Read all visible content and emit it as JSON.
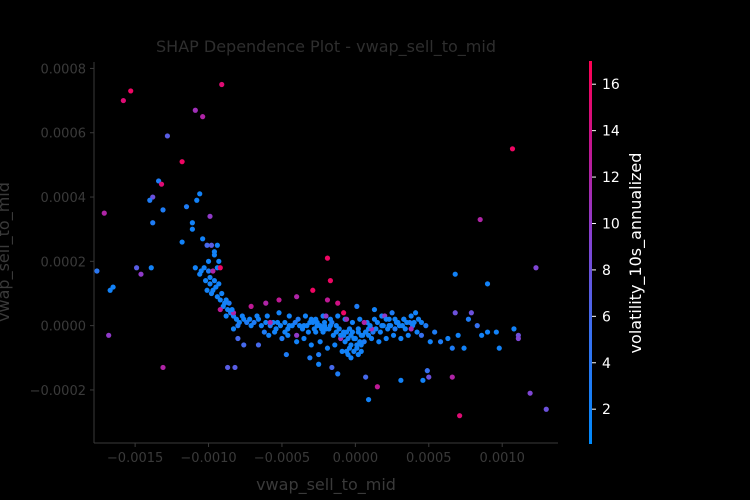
{
  "chart_data": {
    "type": "scatter",
    "title": "SHAP Dependence Plot - vwap_sell_to_mid",
    "xlabel": "vwap_sell_to_mid",
    "ylabel": "vwap_sell_to_mid",
    "xlim": [
      -0.00178,
      0.00138
    ],
    "ylim": [
      -0.000365,
      0.00082
    ],
    "x_ticks": [
      -0.0015,
      -0.001,
      -0.0005,
      0.0,
      0.0005,
      0.001
    ],
    "x_tick_labels": [
      "−0.0015",
      "−0.0010",
      "−0.0005",
      "0.0000",
      "0.0005",
      "0.0010"
    ],
    "y_ticks": [
      -0.0002,
      0.0,
      0.0002,
      0.0004,
      0.0006,
      0.0008
    ],
    "y_tick_labels": [
      "−0.0002",
      "0.0000",
      "0.0002",
      "0.0004",
      "0.0006",
      "0.0008"
    ],
    "colorbar": {
      "label": "volatility_10s_annualized",
      "range": [
        0.5,
        17
      ],
      "ticks": [
        2,
        4,
        6,
        8,
        10,
        12,
        14,
        16
      ],
      "tick_labels": [
        "2",
        "4",
        "6",
        "8",
        "10",
        "12",
        "14",
        "16"
      ],
      "low_color": "#008afb",
      "high_color": "#ff0052"
    },
    "points": [
      [
        -0.00158,
        0.0007,
        15
      ],
      [
        -0.00153,
        0.00073,
        16
      ],
      [
        -0.00091,
        0.00075,
        15
      ],
      [
        -0.00128,
        0.00059,
        7
      ],
      [
        -0.00109,
        0.00067,
        11
      ],
      [
        -0.00104,
        0.00065,
        12
      ],
      [
        -0.00118,
        0.00051,
        16
      ],
      [
        -0.00134,
        0.00045,
        3
      ],
      [
        -0.00132,
        0.00044,
        15
      ],
      [
        -0.00138,
        0.0004,
        8
      ],
      [
        -0.0014,
        0.00039,
        3
      ],
      [
        -0.00115,
        0.00037,
        3
      ],
      [
        -0.00106,
        0.00041,
        2
      ],
      [
        -0.00108,
        0.00039,
        2
      ],
      [
        -0.00131,
        0.00036,
        3
      ],
      [
        -0.00099,
        0.00034,
        10
      ],
      [
        -0.00138,
        0.00032,
        3
      ],
      [
        -0.00111,
        0.00032,
        2
      ],
      [
        -0.00111,
        0.0003,
        2
      ],
      [
        -0.00104,
        0.00027,
        2
      ],
      [
        -0.00118,
        0.00026,
        2
      ],
      [
        -0.00101,
        0.00025,
        6
      ],
      [
        -0.00098,
        0.00025,
        7
      ],
      [
        -0.00094,
        0.00025,
        2
      ],
      [
        -0.00096,
        0.00023,
        2
      ],
      [
        -0.00171,
        0.00035,
        12
      ],
      [
        -0.00176,
        0.00017,
        4
      ],
      [
        -0.00149,
        0.00018,
        7
      ],
      [
        -0.00146,
        0.00016,
        10
      ],
      [
        -0.00139,
        0.00018,
        2
      ],
      [
        -0.00109,
        0.00018,
        2
      ],
      [
        -0.00105,
        0.00017,
        2
      ],
      [
        -0.00103,
        0.00018,
        2
      ],
      [
        -0.001,
        0.00017,
        3
      ],
      [
        -0.00097,
        0.00017,
        12
      ],
      [
        -0.00094,
        0.00018,
        2
      ],
      [
        -0.00092,
        0.00018,
        16
      ],
      [
        -0.00106,
        0.00016,
        2
      ],
      [
        -0.00099,
        0.00015,
        2
      ],
      [
        -0.00096,
        0.00014,
        2
      ],
      [
        -0.00093,
        0.00013,
        2
      ],
      [
        -0.00095,
        0.00012,
        2
      ],
      [
        -0.00101,
        0.00011,
        2
      ],
      [
        -0.00098,
        0.0001,
        2
      ],
      [
        -0.00094,
        9e-05,
        2
      ],
      [
        -0.00091,
        0.0001,
        2
      ],
      [
        -0.00088,
        8e-05,
        2
      ],
      [
        -0.00086,
        7e-05,
        3
      ],
      [
        -0.00165,
        0.00012,
        2
      ],
      [
        -0.00167,
        0.00011,
        2
      ],
      [
        -0.00168,
        -3e-05,
        10
      ],
      [
        -0.00131,
        -0.00013,
        12
      ],
      [
        -0.0009,
        6e-05,
        2
      ],
      [
        -0.00087,
        5e-05,
        2
      ],
      [
        -0.00092,
        5e-05,
        13
      ],
      [
        -0.00085,
        4e-05,
        3
      ],
      [
        -0.00083,
        3e-05,
        2
      ],
      [
        -0.00088,
        3e-05,
        2
      ],
      [
        -0.00081,
        2e-05,
        2
      ],
      [
        -0.00079,
        1e-05,
        2
      ],
      [
        -0.00083,
        -1e-05,
        2
      ],
      [
        -0.0008,
        0.0,
        3
      ],
      [
        -0.00076,
        2e-05,
        2
      ],
      [
        -0.00074,
        1e-05,
        3
      ],
      [
        -0.00071,
        0.0,
        2
      ],
      [
        -0.00069,
        1e-05,
        3
      ],
      [
        -0.00066,
        2e-05,
        2
      ],
      [
        -0.00064,
        0.0,
        2
      ],
      [
        -0.00061,
        1e-05,
        2
      ],
      [
        -0.00058,
        0.0,
        3
      ],
      [
        -0.00056,
        1e-05,
        2
      ],
      [
        -0.00053,
        1e-05,
        2
      ],
      [
        -0.00051,
        0.0,
        2
      ],
      [
        -0.00048,
        1e-05,
        2
      ],
      [
        -0.00046,
        -1e-05,
        2
      ],
      [
        -0.00043,
        0.0,
        2
      ],
      [
        -0.00041,
        1e-05,
        3
      ],
      [
        -0.00038,
        0.0,
        2
      ],
      [
        -0.00036,
        -1e-05,
        2
      ],
      [
        -0.00033,
        0.0,
        2
      ],
      [
        -0.00031,
        1e-05,
        2
      ],
      [
        -0.00028,
        -1e-05,
        2
      ],
      [
        -0.00026,
        0.0,
        2
      ],
      [
        -0.00023,
        -1e-05,
        2
      ],
      [
        -0.00021,
        0.0,
        2
      ],
      [
        -0.00018,
        -1e-05,
        2
      ],
      [
        -0.00016,
        1e-05,
        3
      ],
      [
        -0.00013,
        -2e-05,
        2
      ],
      [
        -0.00011,
        -1e-05,
        2
      ],
      [
        -8e-05,
        -3e-05,
        2
      ],
      [
        -6e-05,
        -2e-05,
        2
      ],
      [
        -3e-05,
        -3e-05,
        2
      ],
      [
        -1e-05,
        -4e-05,
        2
      ],
      [
        2e-05,
        -2e-05,
        2
      ],
      [
        4e-05,
        -3e-05,
        2
      ],
      [
        7e-05,
        -2e-05,
        2
      ],
      [
        9e-05,
        -1e-05,
        2
      ],
      [
        0.00012,
        -2e-05,
        3
      ],
      [
        0.00014,
        -1e-05,
        2
      ],
      [
        0.00017,
        -2e-05,
        2
      ],
      [
        0.00019,
        0.0,
        2
      ],
      [
        0.00022,
        -1e-05,
        2
      ],
      [
        0.00024,
        0.0,
        2
      ],
      [
        0.00027,
        -1e-05,
        3
      ],
      [
        0.00029,
        1e-05,
        2
      ],
      [
        0.00032,
        0.0,
        2
      ],
      [
        0.00034,
        -1e-05,
        2
      ],
      [
        0.00037,
        1e-05,
        3
      ],
      [
        0.00039,
        0.0,
        2
      ],
      [
        0.00042,
        -2e-05,
        2
      ],
      [
        0.00045,
        1e-05,
        2
      ],
      [
        -0.00062,
        -2e-05,
        3
      ],
      [
        -0.00059,
        -3e-05,
        2
      ],
      [
        -0.00055,
        -2e-05,
        2
      ],
      [
        -0.0005,
        -4e-05,
        3
      ],
      [
        -0.00046,
        -3e-05,
        2
      ],
      [
        -0.0004,
        -5e-05,
        2
      ],
      [
        -0.00035,
        -4e-05,
        2
      ],
      [
        -0.0003,
        -6e-05,
        2
      ],
      [
        -0.00024,
        -5e-05,
        2
      ],
      [
        -0.00019,
        -7e-05,
        2
      ],
      [
        -0.00014,
        -6e-05,
        2
      ],
      [
        -9e-05,
        -8e-05,
        2
      ],
      [
        -4e-05,
        -7e-05,
        2
      ],
      [
        1e-05,
        -6e-05,
        2
      ],
      [
        6e-05,
        -5e-05,
        3
      ],
      [
        0.00011,
        -4e-05,
        2
      ],
      [
        0.00016,
        -5e-05,
        2
      ],
      [
        0.00021,
        -4e-05,
        2
      ],
      [
        0.00026,
        -3e-05,
        2
      ],
      [
        0.00031,
        -4e-05,
        2
      ],
      [
        0.00036,
        -3e-05,
        2
      ],
      [
        -0.0006,
        3e-05,
        2
      ],
      [
        -0.00052,
        4e-05,
        2
      ],
      [
        -0.00045,
        3e-05,
        2
      ],
      [
        -0.00039,
        2e-05,
        3
      ],
      [
        -0.00034,
        3e-05,
        2
      ],
      [
        -0.00027,
        2e-05,
        2
      ],
      [
        -0.00022,
        3e-05,
        2
      ],
      [
        -0.00017,
        2e-05,
        2
      ],
      [
        -0.00012,
        3e-05,
        2
      ],
      [
        -7e-05,
        2e-05,
        2
      ],
      [
        -2e-05,
        1e-05,
        2
      ],
      [
        3e-05,
        2e-05,
        2
      ],
      [
        8e-05,
        1e-05,
        3
      ],
      [
        0.00013,
        2e-05,
        2
      ],
      [
        0.00018,
        3e-05,
        2
      ],
      [
        0.00023,
        2e-05,
        2
      ],
      [
        0.00028,
        1e-05,
        2
      ],
      [
        0.00033,
        2e-05,
        2
      ],
      [
        0.00038,
        3e-05,
        2
      ],
      [
        0.00043,
        2e-05,
        2
      ],
      [
        -0.00083,
        4e-05,
        12
      ],
      [
        -0.00071,
        6e-05,
        13
      ],
      [
        -0.00061,
        7e-05,
        12
      ],
      [
        -0.00052,
        8e-05,
        13
      ],
      [
        -0.0004,
        9e-05,
        12
      ],
      [
        -0.00029,
        0.00011,
        16
      ],
      [
        -0.00019,
        8e-05,
        13
      ],
      [
        -0.00012,
        7e-05,
        14
      ],
      [
        -8e-05,
        4e-05,
        16
      ],
      [
        -0.00058,
        1e-05,
        12
      ],
      [
        -0.0002,
        3e-05,
        10
      ],
      [
        -6e-05,
        2e-05,
        11
      ],
      [
        -0.00019,
        0.00021,
        16
      ],
      [
        -0.00017,
        0.00014,
        16
      ],
      [
        6e-05,
        1e-05,
        12
      ],
      [
        0.00011,
        -1e-05,
        11
      ],
      [
        0.0002,
        3e-05,
        10
      ],
      [
        0.00038,
        -1e-05,
        11
      ],
      [
        -0.0004,
        -3e-05,
        10
      ],
      [
        -0.0001,
        -4e-05,
        11
      ],
      [
        1e-05,
        6e-05,
        3
      ],
      [
        0.00013,
        5e-05,
        2
      ],
      [
        0.00025,
        4e-05,
        3
      ],
      [
        0.00041,
        4e-05,
        2
      ],
      [
        -0.0008,
        -4e-05,
        6
      ],
      [
        -0.00076,
        -6e-05,
        6
      ],
      [
        -0.00066,
        -6e-05,
        6
      ],
      [
        -0.00047,
        -9e-05,
        3
      ],
      [
        -0.00031,
        -0.0001,
        3
      ],
      [
        -0.00025,
        -9e-05,
        3
      ],
      [
        -0.00016,
        -0.00013,
        6
      ],
      [
        -0.00012,
        -0.00015,
        3
      ],
      [
        -5e-05,
        -9e-05,
        2
      ],
      [
        7e-05,
        -0.00016,
        6
      ],
      [
        0.00015,
        -0.00019,
        13
      ],
      [
        9e-05,
        -0.00023,
        2
      ],
      [
        0.00031,
        -0.00017,
        2
      ],
      [
        0.00049,
        -0.00014,
        5
      ],
      [
        0.00046,
        -0.00017,
        2
      ],
      [
        0.0005,
        -0.00016,
        8
      ],
      [
        -0.00087,
        -0.00013,
        7
      ],
      [
        -0.00082,
        -0.00013,
        7
      ],
      [
        -0.00025,
        -0.00012,
        2
      ],
      [
        0.00045,
        -3e-05,
        5
      ],
      [
        0.00048,
        0.0,
        3
      ],
      [
        0.00051,
        -5e-05,
        2
      ],
      [
        0.00054,
        -2e-05,
        3
      ],
      [
        0.00058,
        -5e-05,
        3
      ],
      [
        0.00063,
        -4e-05,
        2
      ],
      [
        0.00066,
        -7e-05,
        3
      ],
      [
        0.00068,
        4e-05,
        8
      ],
      [
        0.0007,
        -3e-05,
        2
      ],
      [
        0.00074,
        -7e-05,
        2
      ],
      [
        0.00077,
        2e-05,
        3
      ],
      [
        0.00079,
        4e-05,
        8
      ],
      [
        0.00083,
        0.0,
        5
      ],
      [
        0.00086,
        -3e-05,
        2
      ],
      [
        0.0009,
        -2e-05,
        2
      ],
      [
        0.00096,
        -2e-05,
        2
      ],
      [
        0.00098,
        -7e-05,
        2
      ],
      [
        0.00108,
        -1e-05,
        2
      ],
      [
        0.00111,
        -3e-05,
        8
      ],
      [
        0.00111,
        -4e-05,
        9
      ],
      [
        0.00123,
        0.00018,
        9
      ],
      [
        0.00085,
        0.00033,
        12
      ],
      [
        0.00107,
        0.00055,
        16
      ],
      [
        0.00068,
        0.00016,
        2
      ],
      [
        0.0009,
        0.00013,
        2
      ],
      [
        0.00066,
        -0.00016,
        12
      ],
      [
        0.00071,
        -0.00028,
        15
      ],
      [
        0.00119,
        -0.00021,
        9
      ],
      [
        0.0013,
        -0.00026,
        8
      ],
      [
        2e-05,
        -1e-05,
        2
      ],
      [
        -2e-05,
        -2e-05,
        2
      ],
      [
        -4e-05,
        -1e-05,
        2
      ],
      [
        0.0,
        -4e-05,
        2
      ],
      [
        3e-05,
        -5e-05,
        2
      ],
      [
        -7e-05,
        -5e-05,
        2
      ],
      [
        5e-05,
        -3e-05,
        2
      ],
      [
        -3e-05,
        -6e-05,
        2
      ],
      [
        -1e-05,
        -8e-05,
        2
      ],
      [
        4e-05,
        -6e-05,
        2
      ],
      [
        -5e-05,
        -4e-05,
        2
      ],
      [
        1e-05,
        -7e-05,
        2
      ],
      [
        -8e-05,
        -2e-05,
        2
      ],
      [
        9e-05,
        -3e-05,
        2
      ],
      [
        -0.0001,
        -3e-05,
        2
      ],
      [
        -6e-05,
        -8e-05,
        2
      ],
      [
        2e-05,
        -9e-05,
        2
      ],
      [
        -3e-05,
        -0.0001,
        2
      ],
      [
        4e-05,
        -8e-05,
        2
      ],
      [
        -0.00035,
        0.0,
        2
      ],
      [
        -0.00032,
        -2e-05,
        2
      ],
      [
        -0.00029,
        1e-05,
        2
      ],
      [
        -0.00027,
        -2e-05,
        2
      ],
      [
        -0.00024,
        0.0,
        2
      ],
      [
        -0.00022,
        -2e-05,
        2
      ],
      [
        -0.0002,
        -1e-05,
        2
      ],
      [
        -0.00017,
        0.0,
        2
      ],
      [
        -0.00015,
        -3e-05,
        2
      ],
      [
        -0.00013,
        0.0,
        2
      ],
      [
        -0.0003,
        2e-05,
        2
      ],
      [
        -0.00026,
        1e-05,
        2
      ],
      [
        -0.00021,
        1e-05,
        2
      ],
      [
        0.00015,
        1e-05,
        2
      ],
      [
        0.00018,
        0.0,
        2
      ],
      [
        0.00021,
        2e-05,
        2
      ],
      [
        0.00023,
        0.0,
        2
      ],
      [
        0.00027,
        2e-05,
        2
      ],
      [
        0.0003,
        0.0,
        2
      ],
      [
        0.00033,
        2e-05,
        2
      ],
      [
        0.00035,
        1e-05,
        2
      ],
      [
        0.0004,
        1e-05,
        2
      ],
      [
        0.0001,
        0.0,
        2
      ],
      [
        7e-05,
        -2e-05,
        2
      ],
      [
        -0.00045,
        0.0,
        2
      ],
      [
        -0.00048,
        -2e-05,
        2
      ],
      [
        -0.00054,
        -1e-05,
        2
      ],
      [
        -0.00067,
        3e-05,
        2
      ],
      [
        -0.00072,
        2e-05,
        2
      ],
      [
        -0.00077,
        3e-05,
        2
      ],
      [
        -0.00084,
        5e-05,
        2
      ],
      [
        -0.00089,
        7e-05,
        2
      ],
      [
        -0.00092,
        8e-05,
        2
      ],
      [
        -0.00097,
        0.00011,
        2
      ],
      [
        -0.00099,
        0.00013,
        2
      ],
      [
        -0.00102,
        0.00014,
        2
      ],
      [
        -0.00093,
        0.0002,
        2
      ],
      [
        -0.00096,
        0.00022,
        2
      ],
      [
        -0.001,
        0.0002,
        2
      ]
    ]
  }
}
